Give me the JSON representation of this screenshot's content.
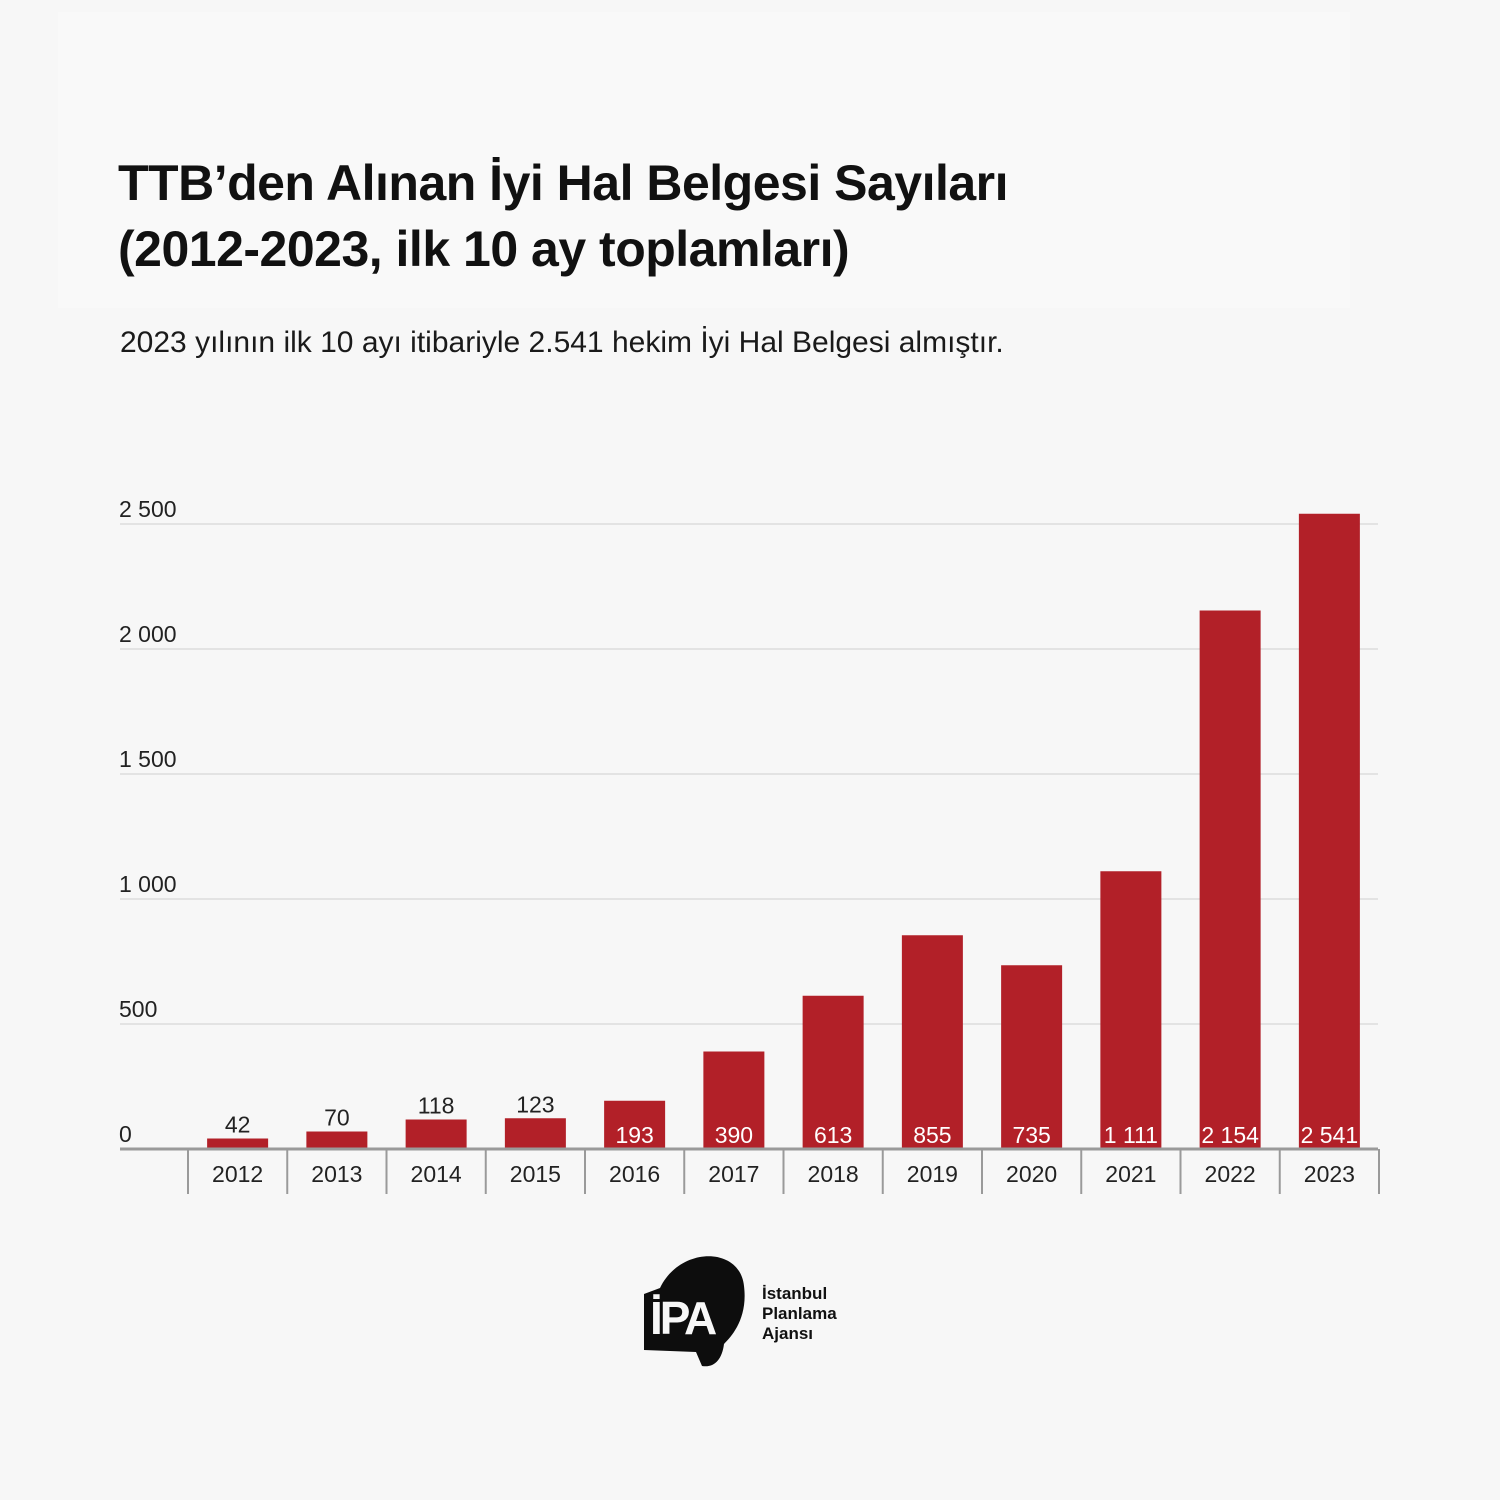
{
  "title_lines": [
    "TTB’den Alınan İyi Hal Belgesi Sayıları",
    "(2012-2023, ilk 10 ay toplamları)"
  ],
  "subtitle": "2023 yılının ilk 10 ayı itibariyle 2.541 hekim İyi Hal Belgesi almıştır.",
  "colors": {
    "bar": "#b22028",
    "background": "#f7f7f7",
    "grid": "#e3e3e3",
    "axis": "#9a9a9a"
  },
  "chart_data": {
    "type": "bar",
    "categories": [
      "2012",
      "2013",
      "2014",
      "2015",
      "2016",
      "2017",
      "2018",
      "2019",
      "2020",
      "2021",
      "2022",
      "2023"
    ],
    "values": [
      42,
      70,
      118,
      123,
      193,
      390,
      613,
      855,
      735,
      1111,
      2154,
      2541
    ],
    "value_labels": [
      "42",
      "70",
      "118",
      "123",
      "193",
      "390",
      "613",
      "855",
      "735",
      "1 111",
      "2 154",
      "2 541"
    ],
    "yticks": [
      0,
      500,
      1000,
      1500,
      2000,
      2500
    ],
    "ytick_labels": [
      "0",
      "500",
      "1 000",
      "1 500",
      "2 000",
      "2 500"
    ],
    "ylim": [
      0,
      2500
    ],
    "grid": true,
    "legend": false
  },
  "logo": {
    "mark": "İPA",
    "text_lines": [
      "İstanbul",
      "Planlama",
      "Ajansı"
    ]
  }
}
